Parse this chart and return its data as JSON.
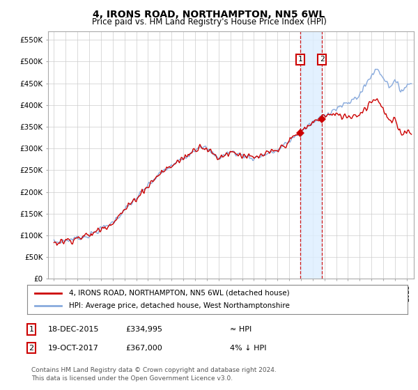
{
  "title": "4, IRONS ROAD, NORTHAMPTON, NN5 6WL",
  "subtitle": "Price paid vs. HM Land Registry's House Price Index (HPI)",
  "ylabel_ticks": [
    "£0",
    "£50K",
    "£100K",
    "£150K",
    "£200K",
    "£250K",
    "£300K",
    "£350K",
    "£400K",
    "£450K",
    "£500K",
    "£550K"
  ],
  "ytick_values": [
    0,
    50000,
    100000,
    150000,
    200000,
    250000,
    300000,
    350000,
    400000,
    450000,
    500000,
    550000
  ],
  "ylim": [
    0,
    570000
  ],
  "sale1_date": 2015.96,
  "sale1_price": 334995,
  "sale2_date": 2017.8,
  "sale2_price": 367000,
  "hpi_line_color": "#88aadd",
  "property_line_color": "#cc0000",
  "shade_color": "#ddeeff",
  "legend_label1": "4, IRONS ROAD, NORTHAMPTON, NN5 6WL (detached house)",
  "legend_label2": "HPI: Average price, detached house, West Northamptonshire",
  "sale1_col1": "18-DEC-2015",
  "sale1_col2": "£334,995",
  "sale1_col3": "≈ HPI",
  "sale2_col1": "19-OCT-2017",
  "sale2_col2": "£367,000",
  "sale2_col3": "4% ↓ HPI",
  "footnote_line1": "Contains HM Land Registry data © Crown copyright and database right 2024.",
  "footnote_line2": "This data is licensed under the Open Government Licence v3.0.",
  "background_color": "#ffffff",
  "grid_color": "#cccccc"
}
